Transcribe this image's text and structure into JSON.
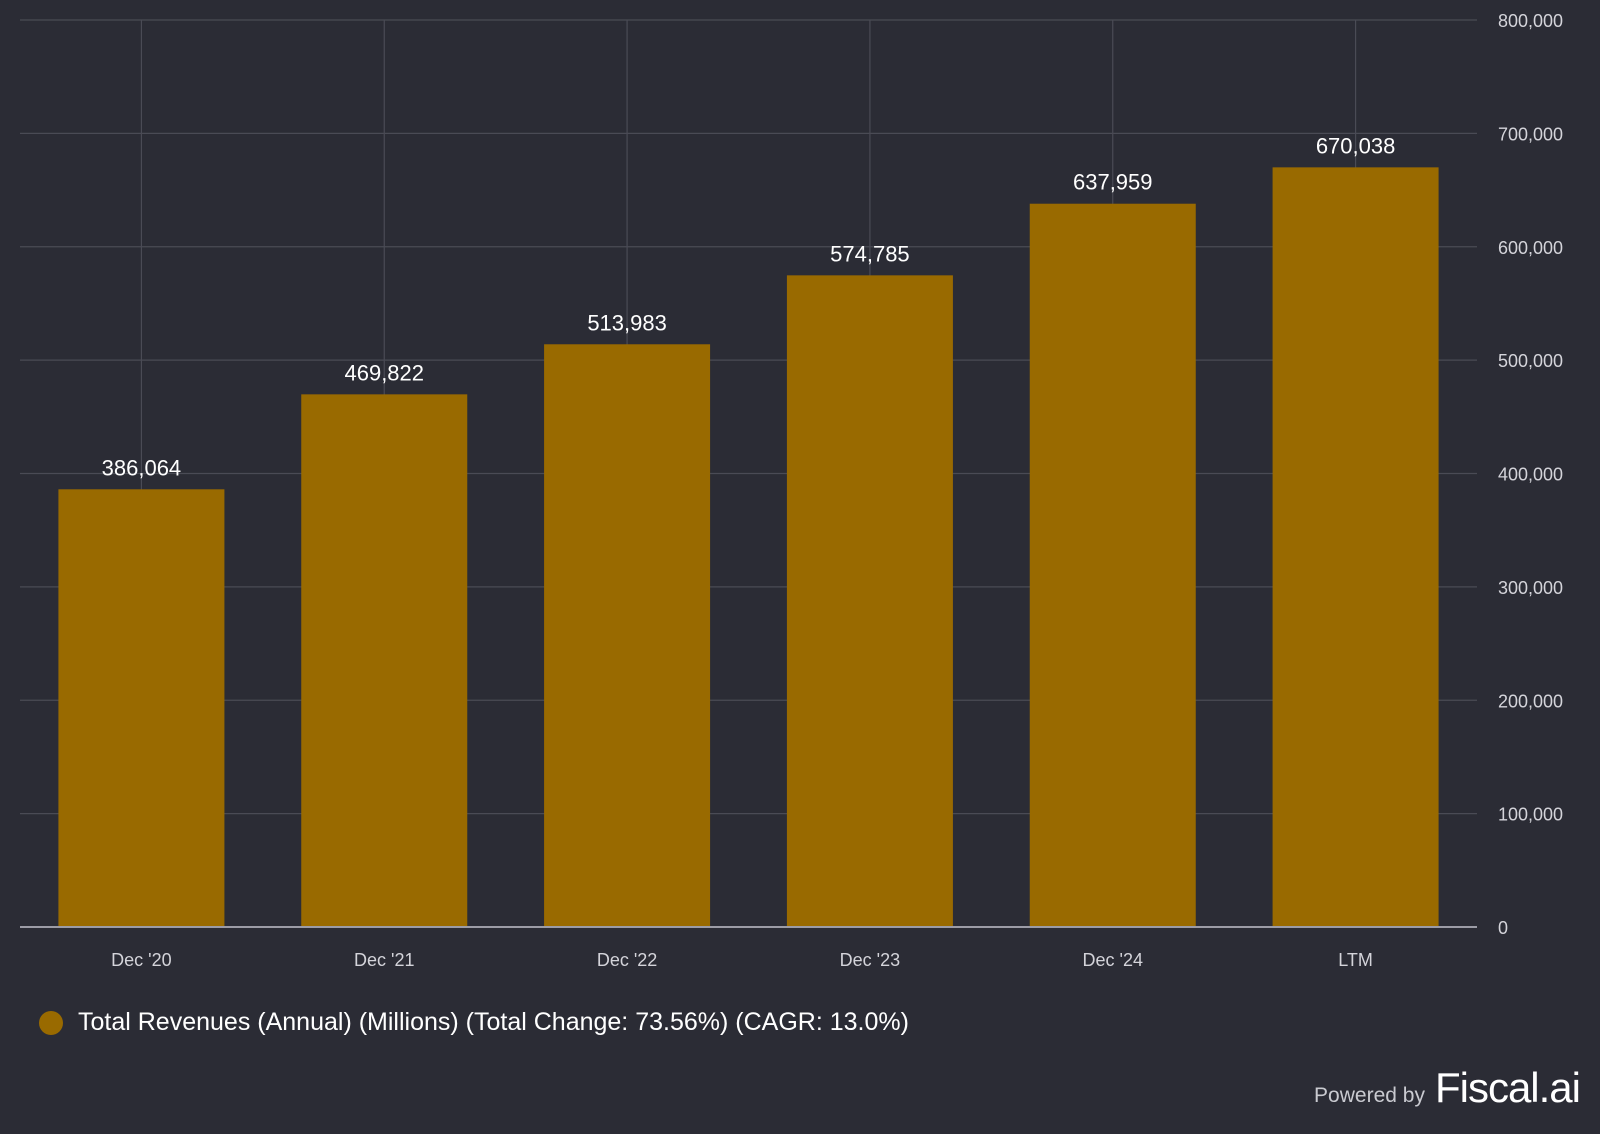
{
  "colors": {
    "background": "#2b2c35",
    "bar": "#996a00",
    "grid": "#4a4b55",
    "axis_line": "#9c9ca6",
    "tick_text": "#d4d4da",
    "label_text": "#ffffff"
  },
  "chart_data": {
    "type": "bar",
    "categories": [
      "Dec '20",
      "Dec '21",
      "Dec '22",
      "Dec '23",
      "Dec '24",
      "LTM"
    ],
    "series": [
      {
        "name": "Total Revenues (Annual) (Millions) (Total Change: 73.56%) (CAGR: 13.0%)",
        "values": [
          386064,
          469822,
          513983,
          574785,
          637959,
          670038
        ],
        "value_labels": [
          "386,064",
          "469,822",
          "513,983",
          "574,785",
          "637,959",
          "670,038"
        ]
      }
    ],
    "y_ticks": [
      0,
      100000,
      200000,
      300000,
      400000,
      500000,
      600000,
      700000,
      800000
    ],
    "y_tick_labels": [
      "0",
      "100,000",
      "200,000",
      "300,000",
      "400,000",
      "500,000",
      "600,000",
      "700,000",
      "800,000"
    ],
    "ylim": [
      0,
      800000
    ],
    "yaxis_side": "right",
    "grid": true,
    "legend_position": "bottom-left",
    "title": "",
    "xlabel": "",
    "ylabel": ""
  },
  "legend": {
    "label": "Total Revenues (Annual) (Millions) (Total Change: 73.56%) (CAGR: 13.0%)"
  },
  "branding": {
    "powered_label": "Powered by",
    "brand": "Fiscal.ai"
  }
}
